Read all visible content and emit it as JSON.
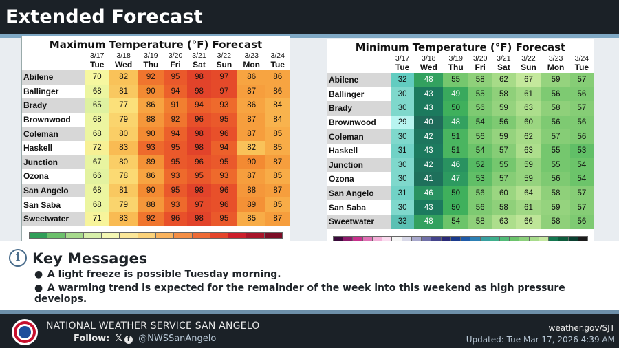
{
  "header": {
    "title": "Extended Forecast"
  },
  "max_table": {
    "title": "Maximum Temperature (°F) Forecast",
    "dates": [
      "3/17",
      "3/18",
      "3/19",
      "3/20",
      "3/21",
      "3/22",
      "3/23",
      "3/24"
    ],
    "days": [
      "Tue",
      "Wed",
      "Thu",
      "Fri",
      "Sat",
      "Sun",
      "Mon",
      "Tue"
    ],
    "rows": [
      {
        "city": "Abilene",
        "values": [
          70,
          82,
          92,
          95,
          98,
          97,
          86,
          86
        ]
      },
      {
        "city": "Ballinger",
        "values": [
          68,
          81,
          90,
          94,
          98,
          97,
          87,
          86
        ]
      },
      {
        "city": "Brady",
        "values": [
          65,
          77,
          86,
          91,
          94,
          93,
          86,
          84
        ]
      },
      {
        "city": "Brownwood",
        "values": [
          68,
          79,
          88,
          92,
          96,
          95,
          87,
          84
        ]
      },
      {
        "city": "Coleman",
        "values": [
          68,
          80,
          90,
          94,
          98,
          96,
          87,
          85
        ]
      },
      {
        "city": "Haskell",
        "values": [
          72,
          83,
          93,
          95,
          98,
          94,
          82,
          85
        ]
      },
      {
        "city": "Junction",
        "values": [
          67,
          80,
          89,
          95,
          96,
          95,
          90,
          87
        ]
      },
      {
        "city": "Ozona",
        "values": [
          66,
          78,
          86,
          93,
          95,
          93,
          87,
          85
        ]
      },
      {
        "city": "San Angelo",
        "values": [
          68,
          81,
          90,
          95,
          98,
          96,
          88,
          87
        ]
      },
      {
        "city": "San Saba",
        "values": [
          68,
          79,
          88,
          93,
          97,
          96,
          89,
          85
        ]
      },
      {
        "city": "Sweetwater",
        "values": [
          71,
          83,
          92,
          96,
          98,
          95,
          85,
          87
        ]
      }
    ],
    "scale_colors": [
      "#2f9e58",
      "#6cc06c",
      "#a6d98c",
      "#d7efaa",
      "#f4f7b4",
      "#fbe79a",
      "#fbd27a",
      "#f9b35e",
      "#f48e45",
      "#ee6b36",
      "#e4452b",
      "#cc1f2b",
      "#a8152a",
      "#7c0d26"
    ]
  },
  "min_table": {
    "title": "Minimum Temperature (°F) Forecast",
    "dates": [
      "3/17",
      "3/18",
      "3/19",
      "3/20",
      "3/21",
      "3/22",
      "3/23",
      "3/24"
    ],
    "days": [
      "Tue",
      "Wed",
      "Thu",
      "Fri",
      "Sat",
      "Sun",
      "Mon",
      "Tue"
    ],
    "rows": [
      {
        "city": "Abilene",
        "values": [
          32,
          48,
          55,
          58,
          62,
          67,
          59,
          57
        ]
      },
      {
        "city": "Ballinger",
        "values": [
          30,
          43,
          49,
          55,
          58,
          61,
          56,
          56
        ]
      },
      {
        "city": "Brady",
        "values": [
          30,
          43,
          50,
          56,
          59,
          63,
          58,
          57
        ]
      },
      {
        "city": "Brownwood",
        "values": [
          29,
          40,
          48,
          54,
          56,
          60,
          56,
          56
        ]
      },
      {
        "city": "Coleman",
        "values": [
          30,
          42,
          51,
          56,
          59,
          62,
          57,
          56
        ]
      },
      {
        "city": "Haskell",
        "values": [
          31,
          43,
          51,
          54,
          57,
          63,
          55,
          53
        ]
      },
      {
        "city": "Junction",
        "values": [
          30,
          42,
          46,
          52,
          55,
          59,
          55,
          54
        ]
      },
      {
        "city": "Ozona",
        "values": [
          30,
          41,
          47,
          53,
          57,
          59,
          56,
          54
        ]
      },
      {
        "city": "San Angelo",
        "values": [
          31,
          46,
          50,
          56,
          60,
          64,
          58,
          57
        ]
      },
      {
        "city": "San Saba",
        "values": [
          30,
          43,
          50,
          56,
          58,
          61,
          59,
          57
        ]
      },
      {
        "city": "Sweetwater",
        "values": [
          33,
          48,
          54,
          58,
          63,
          66,
          58,
          56
        ]
      }
    ],
    "scale_colors": [
      "#3a0a3a",
      "#8c1a6a",
      "#c8308c",
      "#e070b4",
      "#f3b0d8",
      "#fadcef",
      "#f5f5f5",
      "#d8d8e8",
      "#a8a8cc",
      "#7070a8",
      "#44448c",
      "#2a2a78",
      "#1a3a8c",
      "#1f5aa8",
      "#2c80b4",
      "#38a0a0",
      "#3fb08c",
      "#52bc78",
      "#6cc46c",
      "#8cd07c",
      "#a8dc8c",
      "#c4e8a0",
      "#147850",
      "#0e5c3c",
      "#0a4030",
      "#1c1c1c"
    ]
  },
  "key_messages": {
    "title": "Key Messages",
    "info_glyph": "i",
    "bullet_glyph": "●",
    "items": [
      "A light freeze is possible Tuesday morning.",
      "A warming trend is expected for the remainder of the week into this weekend as high pressure develops."
    ]
  },
  "footer": {
    "office": "NATIONAL WEATHER SERVICE SAN ANGELO",
    "follow_label": "Follow:",
    "x_glyph": "𝕏",
    "fb_glyph": "f",
    "handle": "@NWSSanAngelo",
    "website": "weather.gov/SJT",
    "updated": "Updated: Tue Mar 17, 2026 4:39 AM"
  }
}
